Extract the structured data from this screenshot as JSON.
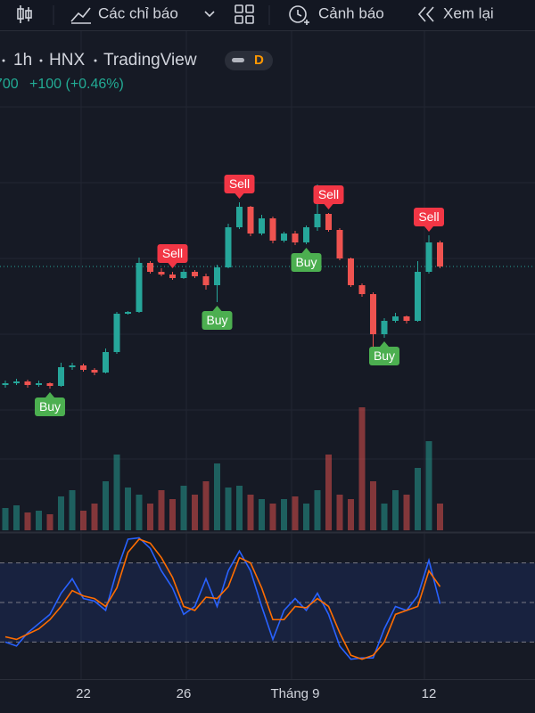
{
  "toolbar": {
    "indicators": "Các chỉ báo",
    "alerts": "Cảnh báo",
    "replay": "Xem lại"
  },
  "legend": {
    "interval": "1h",
    "exchange": "HNX",
    "source": "TradingView",
    "badge": "D",
    "price": "700",
    "change": "+100 (+0.46%)"
  },
  "chart_data": {
    "type": "candlestick",
    "categories": [
      null,
      null,
      null,
      null,
      null,
      null,
      null,
      "22",
      null,
      null,
      null,
      null,
      null,
      null,
      null,
      null,
      "26",
      null,
      null,
      null,
      null,
      null,
      null,
      null,
      null,
      null,
      "Tháng 9",
      null,
      null,
      null,
      null,
      null,
      null,
      null,
      null,
      null,
      null,
      null,
      "12",
      null
    ],
    "candles": [
      [
        20370,
        20420,
        20340,
        20390
      ],
      [
        20390,
        20440,
        20370,
        20410
      ],
      [
        20410,
        20430,
        20340,
        20370
      ],
      [
        20370,
        20420,
        20350,
        20390
      ],
      [
        20390,
        20400,
        20330,
        20360
      ],
      [
        20360,
        20620,
        20350,
        20570
      ],
      [
        20570,
        20620,
        20540,
        20590
      ],
      [
        20590,
        20610,
        20520,
        20540
      ],
      [
        20540,
        20560,
        20480,
        20510
      ],
      [
        20510,
        20780,
        20500,
        20740
      ],
      [
        20740,
        21190,
        20720,
        21170
      ],
      [
        21170,
        21200,
        21160,
        21190
      ],
      [
        21190,
        21800,
        21180,
        21740
      ],
      [
        21740,
        21760,
        21620,
        21640
      ],
      [
        21640,
        21680,
        21590,
        21610
      ],
      [
        21610,
        21640,
        21550,
        21570
      ],
      [
        21570,
        21670,
        21560,
        21640
      ],
      [
        21640,
        21660,
        21570,
        21590
      ],
      [
        21590,
        21620,
        21440,
        21490
      ],
      [
        21490,
        21720,
        21300,
        21690
      ],
      [
        21690,
        22180,
        21680,
        22140
      ],
      [
        22140,
        22420,
        22120,
        22370
      ],
      [
        22370,
        22380,
        22040,
        22070
      ],
      [
        22070,
        22280,
        22050,
        22240
      ],
      [
        22240,
        22260,
        21960,
        21990
      ],
      [
        21990,
        22090,
        21970,
        22070
      ],
      [
        22070,
        22100,
        21940,
        21970
      ],
      [
        21970,
        22160,
        21950,
        22140
      ],
      [
        22140,
        22620,
        22100,
        22290
      ],
      [
        22290,
        22300,
        22090,
        22110
      ],
      [
        22110,
        22130,
        21770,
        21790
      ],
      [
        21790,
        21800,
        21470,
        21490
      ],
      [
        21490,
        21510,
        21360,
        21390
      ],
      [
        21390,
        21410,
        20800,
        20940
      ],
      [
        20940,
        21120,
        20900,
        21090
      ],
      [
        21090,
        21180,
        21070,
        21140
      ],
      [
        21140,
        21150,
        21060,
        21090
      ],
      [
        21090,
        21760,
        21080,
        21640
      ],
      [
        21640,
        22050,
        21620,
        21970
      ],
      [
        21970,
        21990,
        21680,
        21700
      ]
    ],
    "up_color": "#26a69a",
    "down_color": "#ef5350",
    "ylim": [
      18720,
      24270
    ],
    "signals": [
      null,
      null,
      null,
      null,
      "Buy",
      null,
      null,
      null,
      null,
      null,
      null,
      null,
      null,
      null,
      null,
      "Sell",
      null,
      null,
      null,
      "Buy",
      null,
      "Sell",
      null,
      null,
      null,
      null,
      null,
      "Buy",
      null,
      "Sell",
      null,
      null,
      null,
      null,
      "Buy",
      null,
      null,
      null,
      "Sell",
      null
    ],
    "buy_color": "#4caf50",
    "sell_color": "#f23645",
    "volume": [
      25,
      28,
      20,
      22,
      18,
      38,
      45,
      22,
      30,
      55,
      85,
      48,
      40,
      30,
      45,
      35,
      50,
      40,
      55,
      75,
      48,
      50,
      40,
      35,
      30,
      35,
      38,
      30,
      45,
      85,
      40,
      35,
      138,
      55,
      30,
      45,
      40,
      70,
      100,
      30
    ],
    "volume_lim": [
      0,
      140
    ],
    "oscillator": {
      "ylim": [
        0,
        100
      ],
      "levels": [
        80,
        50,
        20
      ],
      "band_color": "#2962ff",
      "lines": [
        {
          "color": "#2962ff",
          "values": [
            20,
            17,
            27,
            34,
            41,
            57,
            68,
            53,
            51,
            44,
            74,
            98,
            99,
            91,
            74,
            61,
            41,
            47,
            68,
            47,
            74,
            89,
            74,
            47,
            22,
            44,
            53,
            44,
            57,
            41,
            17,
            7,
            8,
            8,
            30,
            47,
            44,
            55,
            82,
            49
          ]
        },
        {
          "color": "#ff6d00",
          "values": [
            24,
            22,
            26,
            30,
            37,
            47,
            59,
            55,
            53,
            47,
            61,
            88,
            98,
            95,
            84,
            69,
            47,
            44,
            54,
            53,
            62,
            84,
            80,
            61,
            37,
            37,
            47,
            46,
            53,
            47,
            27,
            10,
            7,
            10,
            20,
            41,
            44,
            47,
            74,
            62
          ]
        }
      ]
    }
  }
}
